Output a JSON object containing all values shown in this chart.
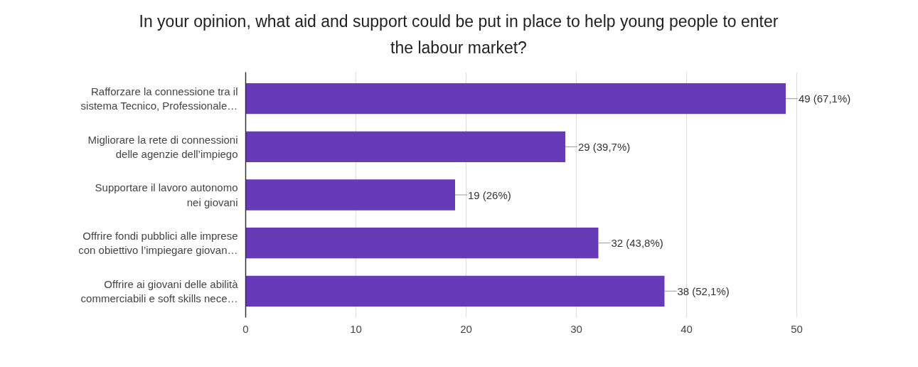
{
  "chart_data": {
    "type": "bar",
    "orientation": "horizontal",
    "title": "In your opinion, what aid and support could be put in place to help young people to enter\nthe labour market?",
    "categories": [
      "Rafforzare la connessione tra il\nsistema Tecnico, Professionale…",
      "Migliorare la rete di connessioni\ndelle agenzie dell’impiego",
      "Supportare il lavoro autonomo\nnei giovani",
      "Offrire fondi pubblici alle imprese\ncon obiettivo l’impiegare giovan…",
      "Offrire ai giovani delle abilità\ncommerciabili e soft skills nece…"
    ],
    "values": [
      49,
      29,
      19,
      32,
      38
    ],
    "value_labels": [
      "49 (67,1%)",
      "29 (39,7%)",
      "19 (26%)",
      "32 (43,8%)",
      "38 (52,1%)"
    ],
    "color": "#673ab7",
    "xlim": [
      0,
      50
    ],
    "xticks": [
      0,
      10,
      20,
      30,
      40,
      50
    ],
    "grid": "x"
  }
}
